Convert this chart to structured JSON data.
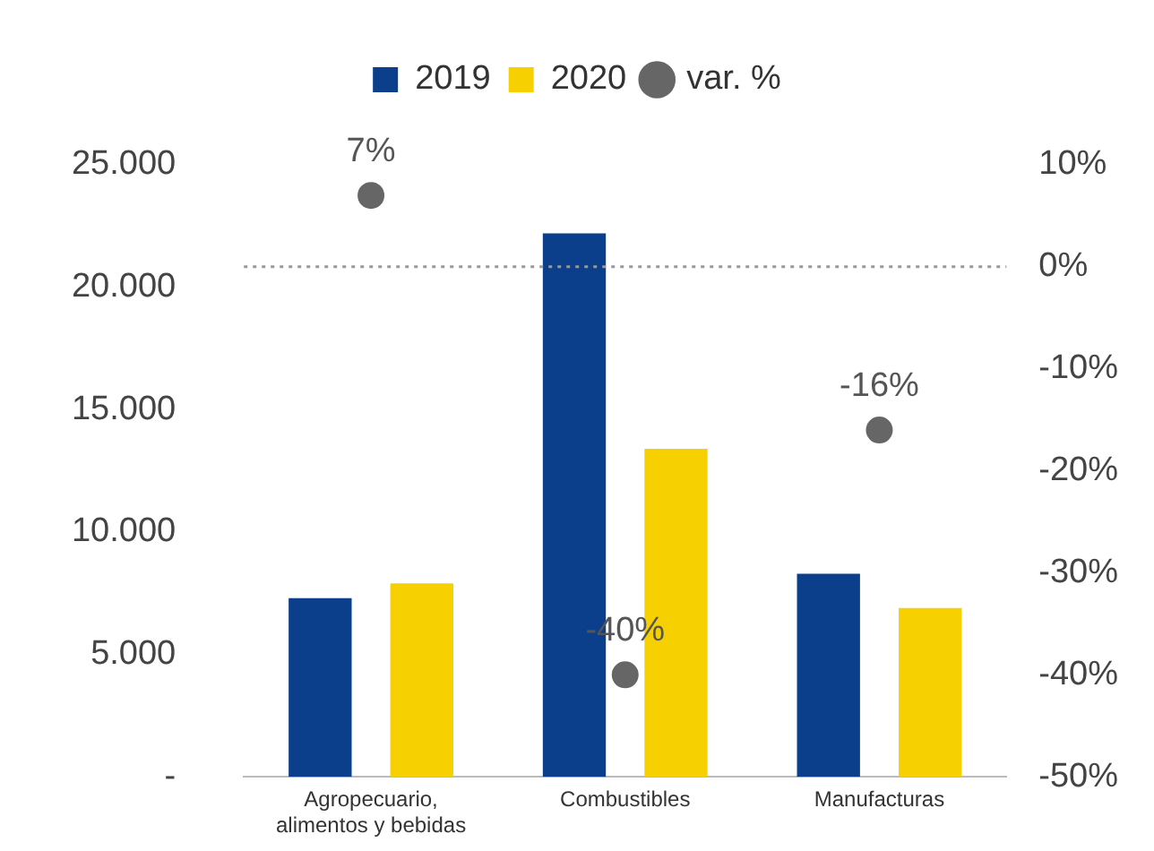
{
  "chart_data": {
    "type": "bar",
    "categories": [
      "Agropecuario, alimentos y bebidas",
      "Combustibles",
      "Manufacturas"
    ],
    "series": [
      {
        "name": "2019",
        "color": "#0b3f8c",
        "values": [
          7300,
          22200,
          8300
        ]
      },
      {
        "name": "2020",
        "color": "#f7d000",
        "values": [
          7900,
          13400,
          6900
        ]
      },
      {
        "name": "var. %",
        "type": "scatter",
        "axis": "y2",
        "color": "#666666",
        "values": [
          7,
          -40,
          -16
        ],
        "value_labels": [
          "7%",
          "-40%",
          "-16%"
        ]
      }
    ],
    "ylim": [
      0,
      25000
    ],
    "yticks": [
      {
        "value": 0,
        "label": "-"
      },
      {
        "value": 5000,
        "label": "5.000"
      },
      {
        "value": 10000,
        "label": "10.000"
      },
      {
        "value": 15000,
        "label": "15.000"
      },
      {
        "value": 20000,
        "label": "20.000"
      },
      {
        "value": 25000,
        "label": "25.000"
      }
    ],
    "y2lim": [
      -50,
      10
    ],
    "y2ticks": [
      {
        "value": -50,
        "label": "-50%"
      },
      {
        "value": -40,
        "label": "-40%"
      },
      {
        "value": -30,
        "label": "-30%"
      },
      {
        "value": -20,
        "label": "-20%"
      },
      {
        "value": -10,
        "label": "-10%"
      },
      {
        "value": 0,
        "label": "0%"
      },
      {
        "value": 10,
        "label": "10%"
      }
    ],
    "ref_lines": [
      {
        "axis": "y2",
        "value": 0,
        "color": "#999999",
        "line_style": "dotted"
      }
    ],
    "legend": "top",
    "grid": false,
    "marker": "circle"
  }
}
